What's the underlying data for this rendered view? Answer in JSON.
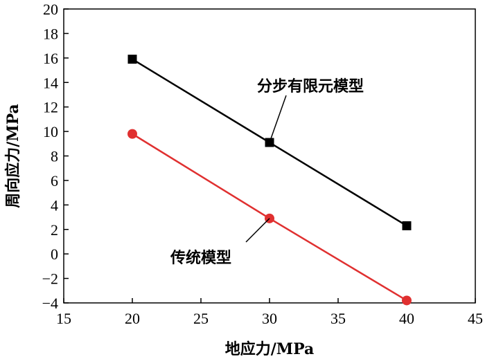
{
  "chart_data": {
    "type": "line",
    "xlabel": "地应力/MPa",
    "ylabel": "周向应力/MPa",
    "xlim": [
      15,
      45
    ],
    "ylim": [
      -4,
      20
    ],
    "xticks": [
      15,
      20,
      25,
      30,
      35,
      40,
      45
    ],
    "yticks": [
      20,
      18,
      16,
      14,
      12,
      10,
      8,
      6,
      4,
      2,
      0,
      -2,
      -4
    ],
    "grid": false,
    "series": [
      {
        "name": "分步有限元模型",
        "color": "#000000",
        "marker": "square",
        "x": [
          20,
          30,
          40
        ],
        "y": [
          15.9,
          9.1,
          2.3
        ]
      },
      {
        "name": "传统模型",
        "color": "#e03030",
        "marker": "circle",
        "x": [
          20,
          30,
          40
        ],
        "y": [
          9.8,
          2.9,
          -3.8
        ]
      }
    ],
    "annotations": [
      {
        "text": "分步有限元模型",
        "series": 0,
        "point_index": 1
      },
      {
        "text": "传统模型",
        "series": 1,
        "point_index": 1
      }
    ]
  }
}
